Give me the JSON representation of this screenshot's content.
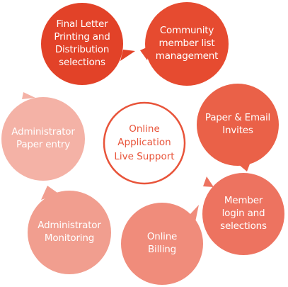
{
  "center": {
    "text": "Online\nApplication\nLive Support",
    "color": "#e8543a"
  },
  "steps": [
    {
      "name": "final-letter",
      "text": "Final Letter\nPrinting and\nDistribution\nselections",
      "color": "#e24228"
    },
    {
      "name": "community-member",
      "text": "Community\nmember list\nmanagement",
      "color": "#e64b30"
    },
    {
      "name": "paper-email-invites",
      "text": "Paper & Email\nInvites",
      "color": "#ea6148"
    },
    {
      "name": "member-login",
      "text": "Member\nlogin and\nselections",
      "color": "#ed7360"
    },
    {
      "name": "online-billing",
      "text": "Online\nBilling",
      "color": "#f08c7b"
    },
    {
      "name": "administrator-monitoring",
      "text": "Administrator\nMonitoring",
      "color": "#f19e8f"
    },
    {
      "name": "administrator-paper-entry",
      "text": "Administrator\nPaper entry",
      "color": "#f4b2a6"
    }
  ]
}
